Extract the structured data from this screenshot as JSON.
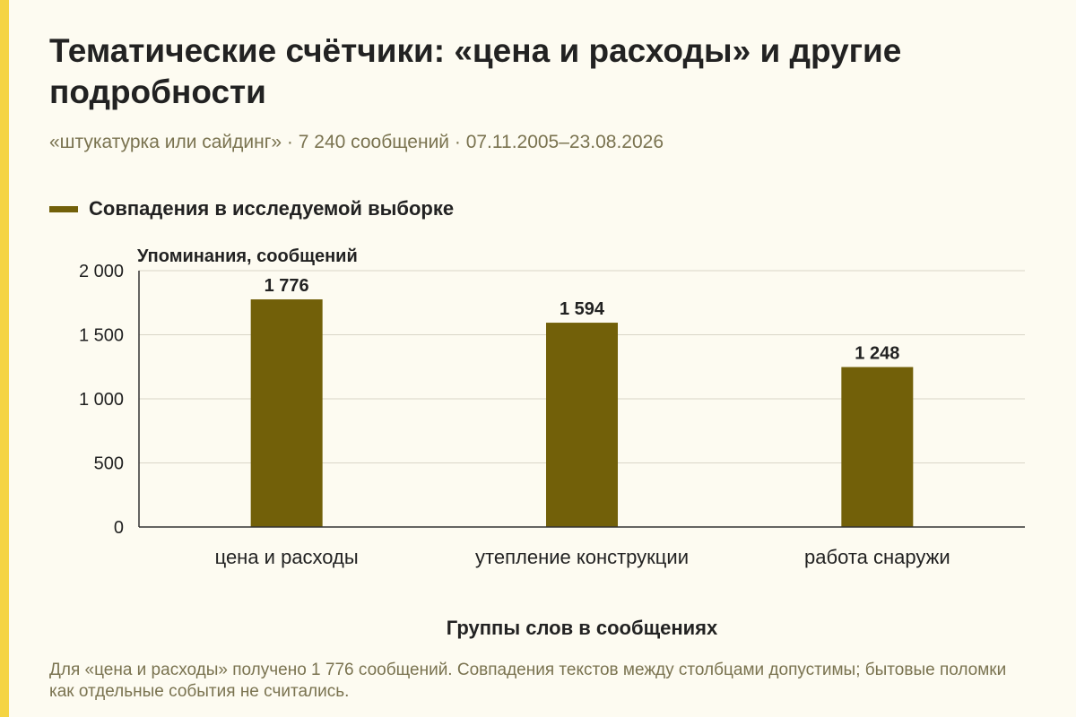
{
  "title": "Тематические счётчики: «цена и расходы» и другие подробности",
  "subtitle": "«штукатурка или сайдинг» · 7 240 сообщений · 07.11.2005–23.08.2026",
  "legend": {
    "label": "Совпадения в исследуемой выборке"
  },
  "note": "Для «цена и расходы» получено 1 776 сообщений. Совпадения текстов между столбцами допустимы; бытовые поломки как отдельные события не считались.",
  "colors": {
    "bar": "#726009",
    "accent": "#f5d443",
    "grid": "#d9d6c8",
    "axis": "#333333"
  },
  "chart_data": {
    "type": "bar",
    "categories": [
      "цена и расходы",
      "утепление конструкции",
      "работа снаружи"
    ],
    "series": [
      {
        "name": "Совпадения в исследуемой выборке",
        "values": [
          1776,
          1594,
          1248
        ],
        "value_labels": [
          "1 776",
          "1 594",
          "1 248"
        ]
      }
    ],
    "ylabel": "Упоминания, сообщений",
    "xlabel": "Группы слов в сообщениях",
    "ylim": [
      0,
      2000
    ],
    "yticks": [
      0,
      500,
      1000,
      1500,
      2000
    ],
    "ytick_labels": [
      "0",
      "500",
      "1 000",
      "1 500",
      "2 000"
    ],
    "grid": true,
    "legend_position": "top-left"
  }
}
